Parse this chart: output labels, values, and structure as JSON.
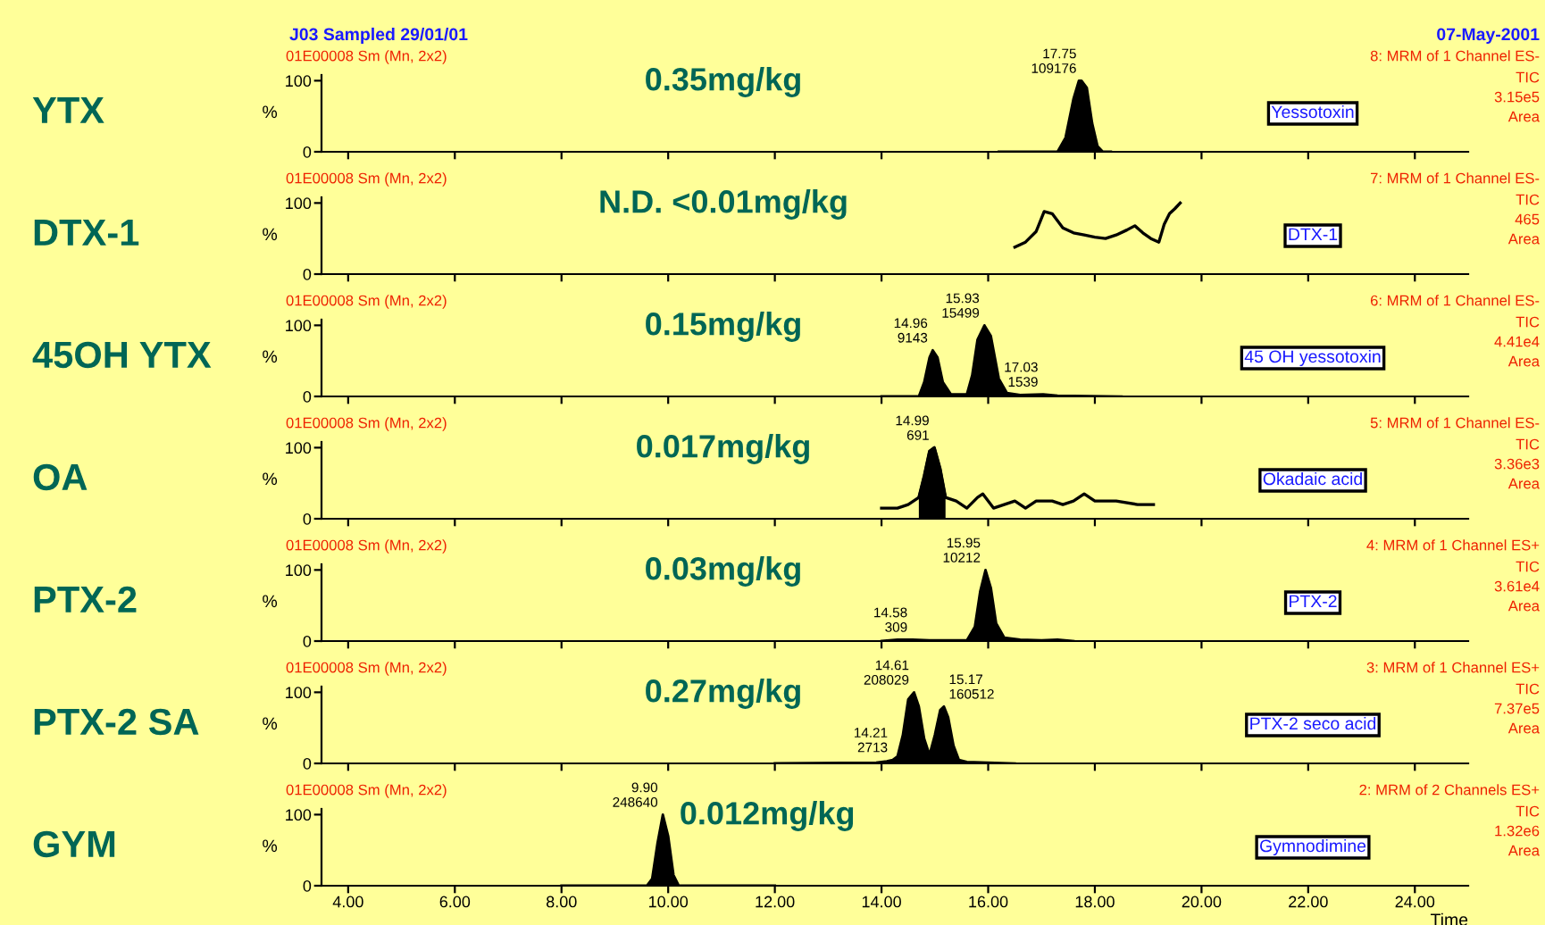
{
  "chart_data": [
    {
      "type": "area",
      "title": "J03 Sampled 29/01/01",
      "subtitle": "07-May-2001",
      "ylabel": "%",
      "xlim": [
        3.5,
        25
      ],
      "ylim": [
        0,
        108
      ],
      "yticks": [
        0,
        100
      ],
      "tick_labels": "y",
      "series": [
        {
          "color": "#000000",
          "x": [
            16.2,
            17.3,
            17.45,
            17.6,
            17.7,
            17.75,
            17.85,
            17.95,
            18.05,
            18.15,
            18.3
          ],
          "values": [
            0,
            0,
            20,
            75,
            100,
            100,
            90,
            40,
            8,
            0,
            0
          ]
        }
      ],
      "annotations": [
        "YTX",
        "0.35mg/kg",
        "01E00008 Sm (Mn, 2x2)",
        "8: MRM of 1 Channel ES-",
        "TIC",
        "3.15e5",
        "Area",
        "Yessotoxin",
        {
          "text": "17.75\n109176",
          "x": 17.75,
          "y": 100
        }
      ]
    },
    {
      "type": "line",
      "ylabel": "%",
      "xlim": [
        3.5,
        25
      ],
      "ylim": [
        0,
        108
      ],
      "yticks": [
        0,
        100
      ],
      "tick_labels": "y",
      "series": [
        {
          "color": "#000000",
          "x": [
            16.5,
            16.7,
            16.9,
            17.05,
            17.2,
            17.4,
            17.6,
            17.8,
            18.0,
            18.2,
            18.4,
            18.6,
            18.75,
            18.9,
            19.05,
            19.2,
            19.3,
            19.4,
            19.5,
            19.6
          ],
          "values": [
            38,
            45,
            60,
            88,
            85,
            65,
            58,
            55,
            52,
            50,
            55,
            62,
            68,
            58,
            50,
            45,
            70,
            85,
            92,
            100
          ]
        }
      ],
      "annotations": [
        "DTX-1",
        "N.D. <0.01mg/kg",
        "01E00008 Sm (Mn, 2x2)",
        "7: MRM of 1 Channel ES-",
        "TIC",
        "465",
        "Area",
        "DTX-1"
      ]
    },
    {
      "type": "area",
      "ylabel": "%",
      "xlim": [
        3.5,
        25
      ],
      "ylim": [
        0,
        108
      ],
      "yticks": [
        0,
        100
      ],
      "tick_labels": "y",
      "series": [
        {
          "color": "#000000",
          "x": [
            14.0,
            14.7,
            14.8,
            14.9,
            14.96,
            15.05,
            15.15,
            15.3,
            15.6,
            15.7,
            15.8,
            15.93,
            16.05,
            16.2,
            16.35,
            16.6,
            17.03,
            17.3,
            18.5
          ],
          "values": [
            0,
            0,
            20,
            55,
            65,
            55,
            20,
            3,
            3,
            30,
            80,
            100,
            85,
            25,
            5,
            2,
            3,
            1,
            0
          ]
        }
      ],
      "annotations": [
        "45OH YTX",
        "0.15mg/kg",
        "01E00008 Sm (Mn, 2x2)",
        "6: MRM of 1 Channel ES-",
        "TIC",
        "4.41e4",
        "Area",
        "45 OH yessotoxin",
        {
          "text": "14.96\n9143",
          "x": 14.96,
          "y": 65
        },
        {
          "text": "15.93\n15499",
          "x": 15.93,
          "y": 100
        },
        {
          "text": "17.03\n1539",
          "x": 17.03,
          "y": 3
        }
      ]
    },
    {
      "type": "line",
      "ylabel": "%",
      "xlim": [
        3.5,
        25
      ],
      "ylim": [
        0,
        108
      ],
      "yticks": [
        0,
        100
      ],
      "tick_labels": "y",
      "series": [
        {
          "color": "#000000",
          "x": [
            14.0,
            14.3,
            14.5,
            14.7,
            14.8,
            14.9,
            14.99,
            15.1,
            15.2,
            15.4,
            15.6,
            15.8,
            15.9,
            16.1,
            16.3,
            16.5,
            16.7,
            16.9,
            17.2,
            17.4,
            17.6,
            17.8,
            18.0,
            18.4,
            18.8,
            19.1
          ],
          "values": [
            15,
            15,
            20,
            30,
            60,
            95,
            100,
            70,
            30,
            25,
            15,
            30,
            35,
            15,
            20,
            25,
            15,
            25,
            25,
            20,
            25,
            35,
            25,
            25,
            20,
            20
          ]
        },
        {
          "type": "area",
          "color": "#000000",
          "x": [
            14.7,
            14.8,
            14.9,
            14.99,
            15.1,
            15.2
          ],
          "values": [
            30,
            60,
            95,
            100,
            70,
            30
          ]
        }
      ],
      "annotations": [
        "OA",
        "0.017mg/kg",
        "01E00008 Sm (Mn, 2x2)",
        "5: MRM of 1 Channel ES-",
        "TIC",
        "3.36e3",
        "Area",
        "Okadaic acid",
        {
          "text": "14.99\n691",
          "x": 14.99,
          "y": 100
        }
      ]
    },
    {
      "type": "area",
      "ylabel": "%",
      "xlim": [
        3.5,
        25
      ],
      "ylim": [
        0,
        108
      ],
      "yticks": [
        0,
        100
      ],
      "tick_labels": "y",
      "series": [
        {
          "color": "#000000",
          "x": [
            14.0,
            14.3,
            14.58,
            14.9,
            15.6,
            15.75,
            15.85,
            15.95,
            16.05,
            16.15,
            16.3,
            16.6,
            17.0,
            17.3,
            17.6
          ],
          "values": [
            0,
            2,
            2,
            1,
            1,
            20,
            70,
            100,
            75,
            25,
            5,
            2,
            1,
            2,
            0
          ]
        }
      ],
      "annotations": [
        "PTX-2",
        "0.03mg/kg",
        "01E00008 Sm (Mn, 2x2)",
        "4: MRM of 1 Channel ES+",
        "TIC",
        "3.61e4",
        "Area",
        "PTX-2",
        {
          "text": "14.58\n309",
          "x": 14.58,
          "y": 2
        },
        {
          "text": "15.95\n10212",
          "x": 15.95,
          "y": 100
        }
      ]
    },
    {
      "type": "area",
      "ylabel": "%",
      "xlim": [
        3.5,
        25
      ],
      "ylim": [
        0,
        108
      ],
      "yticks": [
        0,
        100
      ],
      "tick_labels": "y",
      "series": [
        {
          "color": "#000000",
          "x": [
            12.0,
            13.9,
            14.1,
            14.21,
            14.3,
            14.4,
            14.5,
            14.61,
            14.7,
            14.8,
            14.9,
            15.0,
            15.1,
            15.17,
            15.25,
            15.35,
            15.45,
            15.6,
            16.5
          ],
          "values": [
            0,
            1,
            3,
            5,
            10,
            40,
            90,
            100,
            80,
            35,
            12,
            40,
            75,
            80,
            65,
            25,
            5,
            2,
            0
          ]
        }
      ],
      "annotations": [
        "PTX-2 SA",
        "0.27mg/kg",
        "01E00008 Sm (Mn, 2x2)",
        "3: MRM of 1 Channel ES+",
        "TIC",
        "7.37e5",
        "Area",
        "PTX-2 seco acid",
        {
          "text": "14.21\n2713",
          "x": 14.21,
          "y": 5
        },
        {
          "text": "14.61\n208029",
          "x": 14.61,
          "y": 100
        },
        {
          "text": "15.17\n160512",
          "x": 15.17,
          "y": 80
        }
      ]
    },
    {
      "type": "area",
      "ylabel": "%",
      "xlabel": "Time",
      "xlim": [
        3.5,
        25
      ],
      "ylim": [
        0,
        108
      ],
      "yticks": [
        0,
        100
      ],
      "xticks": [
        {
          "value": 4,
          "label": "4.00"
        },
        {
          "value": 6,
          "label": "6.00"
        },
        {
          "value": 8,
          "label": "8.00"
        },
        {
          "value": 10,
          "label": "10.00"
        },
        {
          "value": 12,
          "label": "12.00"
        },
        {
          "value": 14,
          "label": "14.00"
        },
        {
          "value": 16,
          "label": "16.00"
        },
        {
          "value": 18,
          "label": "18.00"
        },
        {
          "value": 20,
          "label": "20.00"
        },
        {
          "value": 22,
          "label": "22.00"
        },
        {
          "value": 24,
          "label": "24.00"
        }
      ],
      "series": [
        {
          "color": "#000000",
          "x": [
            8.0,
            9.6,
            9.7,
            9.8,
            9.9,
            10.0,
            10.1,
            10.2,
            12.0
          ],
          "values": [
            0,
            0,
            10,
            60,
            100,
            70,
            15,
            0,
            0
          ]
        }
      ],
      "annotations": [
        "GYM",
        "0.012mg/kg",
        "01E00008 Sm (Mn, 2x2)",
        "2: MRM of 2 Channels ES+",
        "TIC",
        "1.32e6",
        "Area",
        "Gymnodimine",
        {
          "text": "9.90\n248640",
          "x": 9.9,
          "y": 100
        }
      ]
    }
  ]
}
